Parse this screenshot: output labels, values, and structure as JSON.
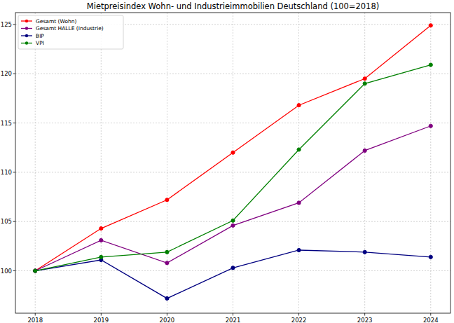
{
  "chart_data": {
    "type": "line",
    "title": "Mietpreisindex Wohn- und Industrieimmobilien Deutschland (100=2018)",
    "x": [
      2018,
      2019,
      2020,
      2021,
      2022,
      2023,
      2024
    ],
    "series": [
      {
        "name": "Gesamt (Wohn)",
        "color": "#ff0000",
        "marker": "circle",
        "values": [
          100,
          104.3,
          107.2,
          112.0,
          116.8,
          119.5,
          124.9
        ]
      },
      {
        "name": "Gesamt HALLE (Industrie)",
        "color": "#800080",
        "marker": "circle",
        "values": [
          100,
          103.1,
          100.8,
          104.6,
          106.9,
          112.2,
          114.7
        ]
      },
      {
        "name": "BIP",
        "color": "#000080",
        "marker": "circle",
        "values": [
          100,
          101.1,
          97.2,
          100.3,
          102.1,
          101.9,
          101.4
        ]
      },
      {
        "name": "VPI",
        "color": "#008000",
        "marker": "circle",
        "values": [
          100,
          101.4,
          101.9,
          105.1,
          112.3,
          119.0,
          120.9
        ]
      }
    ],
    "xlim": [
      2017.7,
      2024.3
    ],
    "xticks": [
      2018,
      2019,
      2020,
      2021,
      2022,
      2023,
      2024
    ],
    "ylim": [
      95.7,
      126.2
    ],
    "yticks": [
      100,
      105,
      110,
      115,
      120,
      125
    ],
    "grid": true,
    "legend": "upper left"
  }
}
